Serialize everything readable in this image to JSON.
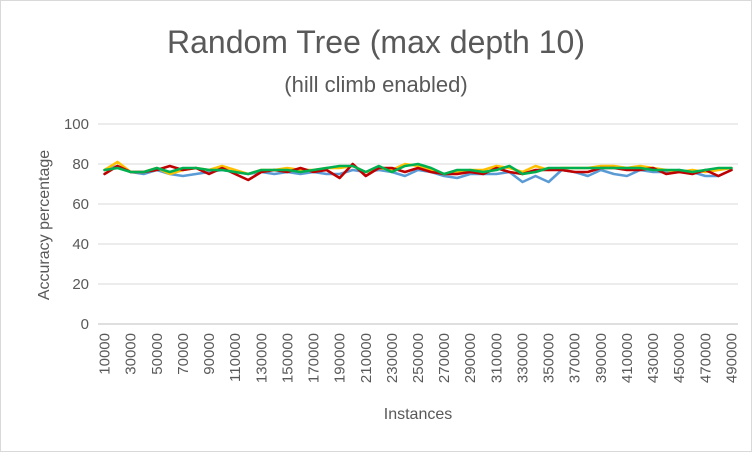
{
  "chart_data": {
    "type": "line",
    "title": "Random Tree (max depth 10)",
    "subtitle": "(hill climb enabled)",
    "xlabel": "Instances",
    "ylabel": "Accuracy percentage",
    "ylim": [
      0,
      100
    ],
    "yticks": [
      "0",
      "20",
      "40",
      "60",
      "80",
      "100"
    ],
    "grid": true,
    "legend": "none",
    "x": [
      10000,
      20000,
      30000,
      40000,
      50000,
      60000,
      70000,
      80000,
      90000,
      100000,
      110000,
      120000,
      130000,
      140000,
      150000,
      160000,
      170000,
      180000,
      190000,
      200000,
      210000,
      220000,
      230000,
      240000,
      250000,
      260000,
      270000,
      280000,
      290000,
      300000,
      310000,
      320000,
      330000,
      340000,
      350000,
      360000,
      370000,
      380000,
      390000,
      400000,
      410000,
      420000,
      430000,
      440000,
      450000,
      460000,
      470000,
      480000,
      490000
    ],
    "xtick_labels": [
      "10000",
      "30000",
      "50000",
      "70000",
      "90000",
      "110000",
      "130000",
      "150000",
      "170000",
      "190000",
      "210000",
      "230000",
      "250000",
      "270000",
      "290000",
      "310000",
      "330000",
      "350000",
      "370000",
      "390000",
      "410000",
      "430000",
      "450000",
      "470000",
      "490000"
    ],
    "series": [
      {
        "color": "#5b9bd5",
        "values": [
          77,
          79,
          76,
          75,
          77,
          75,
          74,
          75,
          76,
          77,
          76,
          75,
          76,
          75,
          76,
          75,
          76,
          75,
          75,
          77,
          76,
          77,
          76,
          74,
          77,
          76,
          74,
          73,
          75,
          75,
          75,
          76,
          71,
          74,
          71,
          77,
          76,
          74,
          77,
          75,
          74,
          77,
          76,
          76,
          77,
          76,
          74,
          74,
          77
        ]
      },
      {
        "color": "#ffc000",
        "values": [
          77,
          81,
          76,
          76,
          78,
          75,
          77,
          78,
          77,
          79,
          77,
          75,
          77,
          77,
          78,
          77,
          77,
          78,
          78,
          79,
          76,
          78,
          77,
          80,
          79,
          77,
          75,
          76,
          77,
          77,
          79,
          78,
          76,
          79,
          77,
          78,
          78,
          78,
          79,
          79,
          78,
          79,
          78,
          77,
          76,
          77,
          76,
          77,
          78
        ]
      },
      {
        "color": "#c00000",
        "values": [
          75,
          79,
          76,
          76,
          77,
          79,
          77,
          78,
          75,
          78,
          75,
          72,
          76,
          77,
          76,
          78,
          76,
          77,
          73,
          80,
          74,
          78,
          78,
          76,
          78,
          76,
          75,
          75,
          76,
          75,
          78,
          76,
          75,
          77,
          77,
          77,
          76,
          76,
          78,
          78,
          77,
          77,
          78,
          75,
          76,
          75,
          77,
          74,
          77
        ]
      },
      {
        "color": "#00b050",
        "values": [
          77,
          78,
          76,
          76,
          78,
          76,
          78,
          78,
          77,
          77,
          76,
          75,
          77,
          77,
          77,
          76,
          77,
          78,
          79,
          79,
          76,
          79,
          76,
          79,
          80,
          78,
          75,
          77,
          77,
          76,
          77,
          79,
          75,
          76,
          78,
          78,
          78,
          78,
          78,
          78,
          78,
          78,
          77,
          77,
          77,
          76,
          77,
          78,
          78
        ]
      }
    ]
  }
}
